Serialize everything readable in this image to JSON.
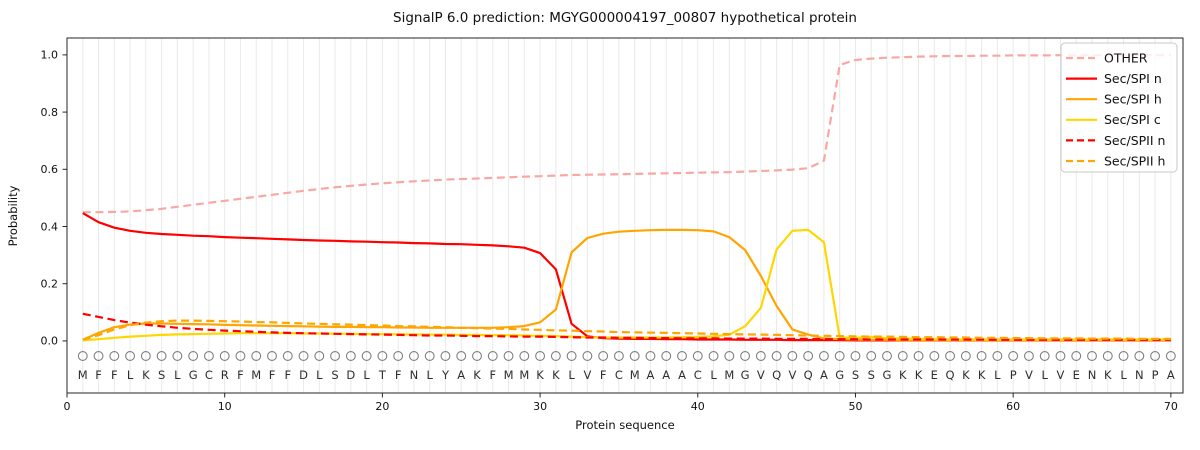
{
  "title": "SignalP 6.0 prediction: MGYG000004197_00807 hypothetical protein",
  "axes": {
    "xlabel": "Protein sequence",
    "ylabel": "Probability"
  },
  "legend": {
    "position": "upper right",
    "entries": [
      {
        "label": "OTHER",
        "color": "#f8a7a3",
        "dash": true
      },
      {
        "label": "Sec/SPI n",
        "color": "#fe0000",
        "dash": false
      },
      {
        "label": "Sec/SPI h",
        "color": "#ffa500",
        "dash": false
      },
      {
        "label": "Sec/SPI c",
        "color": "#ffd700",
        "dash": false
      },
      {
        "label": "Sec/SPII n",
        "color": "#fe0000",
        "dash": true
      },
      {
        "label": "Sec/SPII h",
        "color": "#ffa500",
        "dash": true
      }
    ]
  },
  "chart_data": {
    "type": "line",
    "title": "SignalP 6.0 prediction: MGYG000004197_00807 hypothetical protein",
    "xlabel": "Protein sequence",
    "ylabel": "Probability",
    "xlim": [
      0,
      70.77
    ],
    "ylim": [
      -0.182,
      1.059
    ],
    "x_ticks": [
      0,
      10,
      20,
      30,
      40,
      50,
      60,
      70
    ],
    "y_ticks": [
      0.0,
      0.2,
      0.4,
      0.6,
      0.8,
      1.0
    ],
    "grid": "vertical line per residue, light gray",
    "legend_position": "upper right",
    "residue_marker": "O",
    "sequence": [
      "M",
      "F",
      "F",
      "L",
      "K",
      "S",
      "L",
      "G",
      "C",
      "R",
      "F",
      "M",
      "F",
      "F",
      "D",
      "L",
      "S",
      "D",
      "L",
      "T",
      "F",
      "N",
      "L",
      "Y",
      "A",
      "K",
      "F",
      "M",
      "M",
      "K",
      "K",
      "L",
      "V",
      "F",
      "C",
      "M",
      "A",
      "A",
      "A",
      "C",
      "L",
      "M",
      "G",
      "V",
      "Q",
      "V",
      "Q",
      "A",
      "G",
      "S",
      "S",
      "G",
      "K",
      "K",
      "E",
      "Q",
      "K",
      "K",
      "L",
      "P",
      "V",
      "L",
      "V",
      "E",
      "N",
      "K",
      "L",
      "N",
      "P",
      "A"
    ],
    "x": [
      1,
      2,
      3,
      4,
      5,
      6,
      7,
      8,
      9,
      10,
      11,
      12,
      13,
      14,
      15,
      16,
      17,
      18,
      19,
      20,
      21,
      22,
      23,
      24,
      25,
      26,
      27,
      28,
      29,
      30,
      31,
      32,
      33,
      34,
      35,
      36,
      37,
      38,
      39,
      40,
      41,
      42,
      43,
      44,
      45,
      46,
      47,
      48,
      49,
      50,
      51,
      52,
      53,
      54,
      55,
      56,
      57,
      58,
      59,
      60,
      61,
      62,
      63,
      64,
      65,
      66,
      67,
      68,
      69,
      70
    ],
    "series": [
      {
        "name": "OTHER",
        "color": "#f8a7a3",
        "dash": true,
        "values": [
          0.45,
          0.45,
          0.451,
          0.453,
          0.457,
          0.462,
          0.469,
          0.476,
          0.483,
          0.49,
          0.497,
          0.504,
          0.511,
          0.518,
          0.525,
          0.531,
          0.537,
          0.542,
          0.547,
          0.551,
          0.555,
          0.558,
          0.561,
          0.564,
          0.566,
          0.568,
          0.57,
          0.572,
          0.574,
          0.576,
          0.578,
          0.58,
          0.581,
          0.582,
          0.583,
          0.584,
          0.585,
          0.586,
          0.587,
          0.588,
          0.589,
          0.59,
          0.592,
          0.594,
          0.596,
          0.599,
          0.604,
          0.63,
          0.965,
          0.982,
          0.987,
          0.99,
          0.992,
          0.994,
          0.995,
          0.996,
          0.996,
          0.997,
          0.997,
          0.998,
          0.998,
          0.998,
          0.999,
          0.999,
          0.999,
          0.999,
          0.999,
          0.999,
          0.999,
          0.999
        ]
      },
      {
        "name": "Sec/SPI n",
        "color": "#fe0000",
        "dash": false,
        "values": [
          0.447,
          0.415,
          0.396,
          0.385,
          0.378,
          0.374,
          0.371,
          0.368,
          0.366,
          0.363,
          0.361,
          0.359,
          0.357,
          0.355,
          0.353,
          0.351,
          0.35,
          0.348,
          0.347,
          0.345,
          0.344,
          0.342,
          0.341,
          0.339,
          0.338,
          0.336,
          0.334,
          0.331,
          0.326,
          0.307,
          0.25,
          0.06,
          0.016,
          0.01,
          0.008,
          0.007,
          0.007,
          0.006,
          0.006,
          0.005,
          0.005,
          0.005,
          0.004,
          0.004,
          0.004,
          0.003,
          0.003,
          0.003,
          0.003,
          0.002,
          0.002,
          0.002,
          0.002,
          0.002,
          0.002,
          0.002,
          0.002,
          0.002,
          0.002,
          0.002,
          0.002,
          0.002,
          0.002,
          0.002,
          0.002,
          0.002,
          0.002,
          0.002,
          0.002,
          0.002
        ]
      },
      {
        "name": "Sec/SPI h",
        "color": "#ffa500",
        "dash": false,
        "values": [
          0.004,
          0.028,
          0.048,
          0.057,
          0.061,
          0.061,
          0.06,
          0.059,
          0.058,
          0.056,
          0.055,
          0.054,
          0.053,
          0.052,
          0.051,
          0.05,
          0.049,
          0.049,
          0.048,
          0.048,
          0.047,
          0.047,
          0.046,
          0.046,
          0.046,
          0.046,
          0.046,
          0.048,
          0.052,
          0.065,
          0.11,
          0.31,
          0.36,
          0.375,
          0.382,
          0.385,
          0.387,
          0.388,
          0.388,
          0.387,
          0.383,
          0.363,
          0.318,
          0.227,
          0.122,
          0.04,
          0.022,
          0.009,
          0.006,
          0.005,
          0.004,
          0.004,
          0.003,
          0.003,
          0.003,
          0.003,
          0.003,
          0.003,
          0.003,
          0.003,
          0.003,
          0.003,
          0.003,
          0.003,
          0.003,
          0.003,
          0.003,
          0.003,
          0.003,
          0.003
        ]
      },
      {
        "name": "Sec/SPI c",
        "color": "#ffd700",
        "dash": false,
        "values": [
          0.002,
          0.006,
          0.011,
          0.015,
          0.018,
          0.021,
          0.023,
          0.024,
          0.025,
          0.026,
          0.027,
          0.027,
          0.027,
          0.027,
          0.026,
          0.026,
          0.025,
          0.025,
          0.024,
          0.024,
          0.023,
          0.023,
          0.022,
          0.022,
          0.021,
          0.021,
          0.02,
          0.02,
          0.019,
          0.018,
          0.017,
          0.015,
          0.013,
          0.012,
          0.012,
          0.012,
          0.012,
          0.012,
          0.013,
          0.014,
          0.016,
          0.022,
          0.051,
          0.116,
          0.32,
          0.385,
          0.388,
          0.345,
          0.012,
          0.011,
          0.014,
          0.01,
          0.008,
          0.007,
          0.006,
          0.005,
          0.005,
          0.005,
          0.005,
          0.005,
          0.005,
          0.005,
          0.005,
          0.005,
          0.005,
          0.005,
          0.005,
          0.005,
          0.005,
          0.005
        ]
      },
      {
        "name": "Sec/SPII n",
        "color": "#fe0000",
        "dash": true,
        "values": [
          0.095,
          0.084,
          0.073,
          0.064,
          0.057,
          0.051,
          0.046,
          0.042,
          0.039,
          0.036,
          0.034,
          0.032,
          0.03,
          0.028,
          0.027,
          0.026,
          0.025,
          0.024,
          0.023,
          0.022,
          0.021,
          0.02,
          0.019,
          0.019,
          0.018,
          0.017,
          0.017,
          0.016,
          0.015,
          0.015,
          0.014,
          0.013,
          0.012,
          0.012,
          0.011,
          0.011,
          0.01,
          0.01,
          0.009,
          0.009,
          0.009,
          0.008,
          0.008,
          0.008,
          0.007,
          0.007,
          0.007,
          0.006,
          0.006,
          0.006,
          0.005,
          0.005,
          0.005,
          0.005,
          0.005,
          0.005,
          0.005,
          0.005,
          0.004,
          0.004,
          0.004,
          0.004,
          0.004,
          0.004,
          0.004,
          0.004,
          0.004,
          0.004,
          0.004,
          0.004
        ]
      },
      {
        "name": "Sec/SPII h",
        "color": "#ffa500",
        "dash": true,
        "values": [
          0.004,
          0.02,
          0.04,
          0.055,
          0.064,
          0.069,
          0.071,
          0.071,
          0.07,
          0.069,
          0.068,
          0.066,
          0.065,
          0.063,
          0.061,
          0.06,
          0.058,
          0.057,
          0.055,
          0.054,
          0.052,
          0.051,
          0.049,
          0.048,
          0.046,
          0.045,
          0.043,
          0.042,
          0.04,
          0.039,
          0.037,
          0.036,
          0.034,
          0.033,
          0.031,
          0.03,
          0.029,
          0.028,
          0.027,
          0.026,
          0.025,
          0.024,
          0.023,
          0.022,
          0.021,
          0.02,
          0.019,
          0.018,
          0.017,
          0.016,
          0.015,
          0.015,
          0.014,
          0.013,
          0.013,
          0.012,
          0.012,
          0.011,
          0.011,
          0.01,
          0.01,
          0.009,
          0.009,
          0.009,
          0.008,
          0.008,
          0.008,
          0.007,
          0.007,
          0.007
        ]
      }
    ]
  },
  "style_colors": {
    "grid": "#e9e9e9",
    "frame": "#262626",
    "marker": "#7f7f7f",
    "legend_border": "#c9c9c9"
  }
}
